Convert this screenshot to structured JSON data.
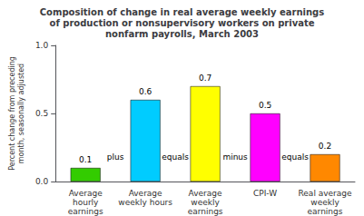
{
  "chart_data": {
    "type": "bar",
    "title": "Composition of change in real average weekly earnings\nof production or nonsupervisory workers on private\nnonfarm payrolls, March 2003",
    "ylabel": "Percent change from preceding\nmonth, seasonally adjusted",
    "categories": [
      "Average\nhourly\nearnings",
      "Average\nweekly hours",
      "Average\nweekly\nearnings",
      "CPI-W",
      "Real average\nweekly\nearnings"
    ],
    "values": [
      0.1,
      0.6,
      0.7,
      0.5,
      0.2
    ],
    "colors": [
      "#33cc00",
      "#00ccff",
      "#ffff00",
      "#ff00ff",
      "#ff8800"
    ],
    "annotations": [
      "plus",
      "equals",
      "minus",
      "equals"
    ],
    "ylim": [
      0,
      1.0
    ],
    "yticks": [
      {
        "value": 0.0,
        "label": "0.0"
      },
      {
        "value": 0.5,
        "label": "0.5"
      },
      {
        "value": 1.0,
        "label": "1.0"
      }
    ],
    "data_labels": true,
    "grid": false
  }
}
